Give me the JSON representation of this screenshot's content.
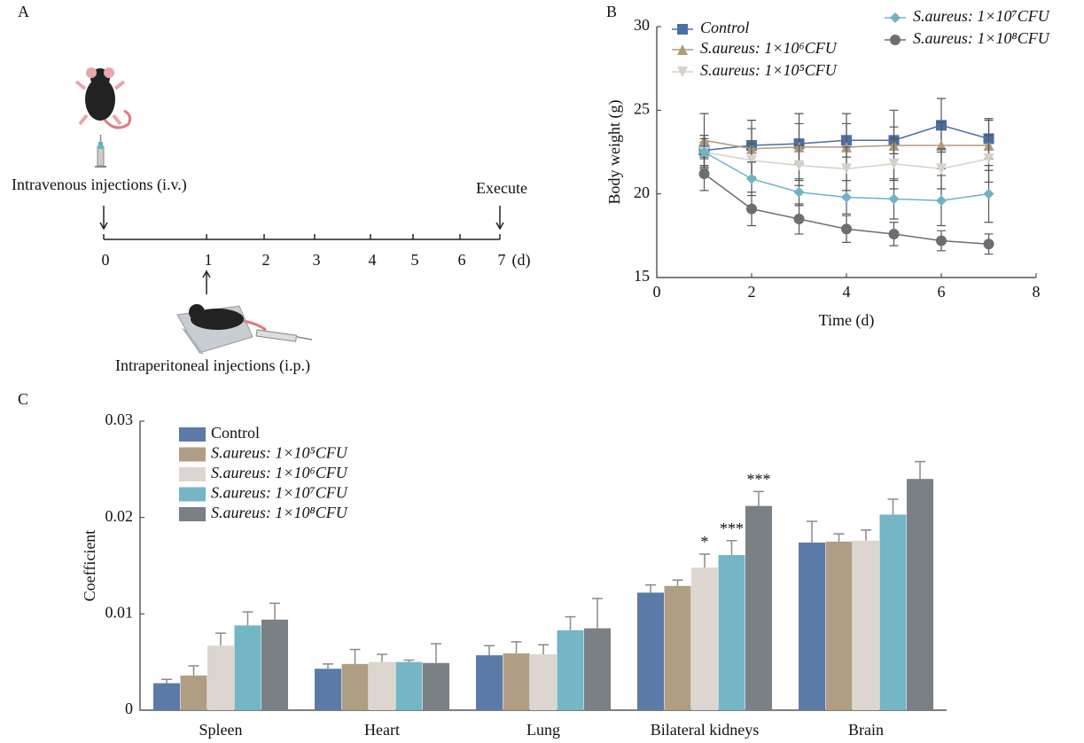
{
  "panel_a": {
    "label": "A",
    "top_text": "Intravenous injections (i.v.)",
    "end_text": "Execute",
    "bottom_text": "Intraperitoneal injections (i.p.)",
    "days": [
      0,
      1,
      2,
      3,
      4,
      5,
      6,
      7
    ],
    "unit": "(d)"
  },
  "chart_data": [
    {
      "type": "line",
      "label": "B",
      "x_label": "Time (d)",
      "y_label": "Body weight (g)",
      "x": [
        1,
        2,
        3,
        4,
        5,
        6,
        7
      ],
      "xlim": [
        0,
        8
      ],
      "xticks": [
        0,
        2,
        4,
        6,
        8
      ],
      "ylim": [
        15,
        30
      ],
      "yticks": [
        15,
        20,
        25,
        30
      ],
      "series": [
        {
          "name": "Control",
          "color": "#4a6fa5",
          "marker": "square",
          "values": [
            22.6,
            22.9,
            23.0,
            23.2,
            23.2,
            24.1,
            23.3
          ],
          "errors": [
            0.5,
            1.0,
            1.2,
            1.0,
            0.8,
            1.6,
            1.2
          ]
        },
        {
          "name": "S.aureus: 1×10⁶CFU",
          "color": "#b09a7c",
          "marker": "triangle",
          "values": [
            23.2,
            22.7,
            22.8,
            22.8,
            22.9,
            22.9,
            22.9
          ],
          "errors": [
            1.6,
            1.7,
            2.0,
            2.0,
            2.1,
            1.4,
            1.5
          ]
        },
        {
          "name": "S.aureus: 1×10⁵CFU",
          "color": "#d6d0c8",
          "marker": "triangle-down",
          "values": [
            22.5,
            22.0,
            21.7,
            21.5,
            21.8,
            21.5,
            22.1
          ],
          "errors": [
            1.0,
            1.0,
            1.2,
            1.3,
            1.5,
            1.2,
            1.4
          ]
        },
        {
          "name": "S.aureus: 1×10⁷CFU",
          "color": "#6fb3c5",
          "marker": "diamond",
          "values": [
            22.5,
            20.9,
            20.1,
            19.8,
            19.7,
            19.6,
            20.0
          ],
          "errors": [
            0.8,
            1.0,
            0.8,
            1.0,
            1.2,
            1.5,
            1.7
          ]
        },
        {
          "name": "S.aureus: 1×10⁸CFU",
          "color": "#6b6e72",
          "marker": "circle",
          "values": [
            21.2,
            19.1,
            18.5,
            17.9,
            17.6,
            17.2,
            17.0
          ],
          "errors": [
            1.0,
            1.0,
            0.9,
            0.8,
            0.7,
            0.6,
            0.6
          ]
        }
      ]
    },
    {
      "type": "bar",
      "label": "C",
      "y_label": "Coefficient",
      "categories": [
        "Spleen",
        "Heart",
        "Lung",
        "Bilateral kidneys",
        "Brain"
      ],
      "ylim": [
        0,
        0.03
      ],
      "yticks": [
        0,
        0.01,
        0.02,
        0.03
      ],
      "series": [
        {
          "name": "Control",
          "color": "#5b7aa8",
          "values": [
            0.0028,
            0.0043,
            0.0057,
            0.0122,
            0.0174
          ],
          "errors": [
            0.0004,
            0.0005,
            0.001,
            0.0008,
            0.0022
          ]
        },
        {
          "name": "S.aureus: 1×10⁵CFU",
          "color": "#b09e84",
          "values": [
            0.0036,
            0.0048,
            0.0059,
            0.0129,
            0.0175
          ],
          "errors": [
            0.001,
            0.0015,
            0.0012,
            0.0006,
            0.0008
          ]
        },
        {
          "name": "S.aureus: 1×10⁶CFU",
          "color": "#ddd5cf",
          "values": [
            0.0067,
            0.005,
            0.0058,
            0.0148,
            0.0176
          ],
          "errors": [
            0.0013,
            0.0008,
            0.001,
            0.0014,
            0.0011
          ],
          "annotations": [
            null,
            null,
            null,
            "*",
            null
          ]
        },
        {
          "name": "S.aureus: 1×10⁷CFU",
          "color": "#74b5c6",
          "values": [
            0.0088,
            0.005,
            0.0083,
            0.0161,
            0.0203
          ],
          "errors": [
            0.0014,
            0.0002,
            0.0014,
            0.0015,
            0.0016
          ],
          "annotations": [
            null,
            null,
            null,
            "***",
            null
          ]
        },
        {
          "name": "S.aureus: 1×10⁸CFU",
          "color": "#7b8085",
          "values": [
            0.0094,
            0.0049,
            0.0085,
            0.0212,
            0.024
          ],
          "errors": [
            0.0017,
            0.002,
            0.0031,
            0.0015,
            0.0018
          ],
          "annotations": [
            null,
            null,
            null,
            "***",
            null
          ]
        }
      ]
    }
  ]
}
